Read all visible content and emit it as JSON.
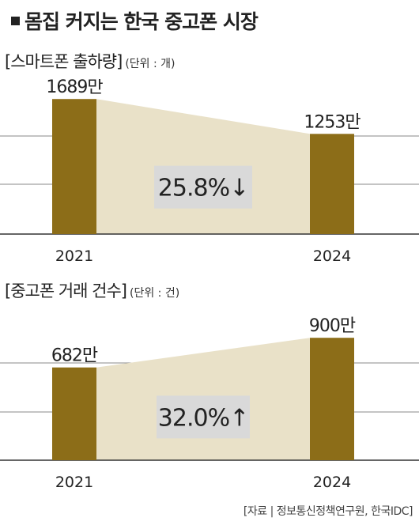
{
  "title": "몸집 커지는 한국 중고폰 시장",
  "source": "[자료 | 정보통신정책연구원, 한국IDC]",
  "colors": {
    "bar": "#8c6d18",
    "area": "#e9e1c8",
    "box": "#d9d9d9"
  },
  "chart_data": [
    {
      "type": "bar",
      "title": "[스마트폰 출하량]",
      "unit": "(단위 : 개)",
      "categories": [
        "2021",
        "2024"
      ],
      "values": [
        1689,
        1253
      ],
      "value_labels": [
        "1689만",
        "1253만"
      ],
      "change_label": "25.8%↓",
      "ylim": [
        0,
        1800
      ],
      "grid": true
    },
    {
      "type": "bar",
      "title": "[중고폰 거래 건수]",
      "unit": "(단위 : 건)",
      "categories": [
        "2021",
        "2024"
      ],
      "values": [
        682,
        900
      ],
      "value_labels": [
        "682만",
        "900만"
      ],
      "change_label": "32.0%↑",
      "ylim": [
        0,
        1000
      ],
      "grid": true
    }
  ]
}
